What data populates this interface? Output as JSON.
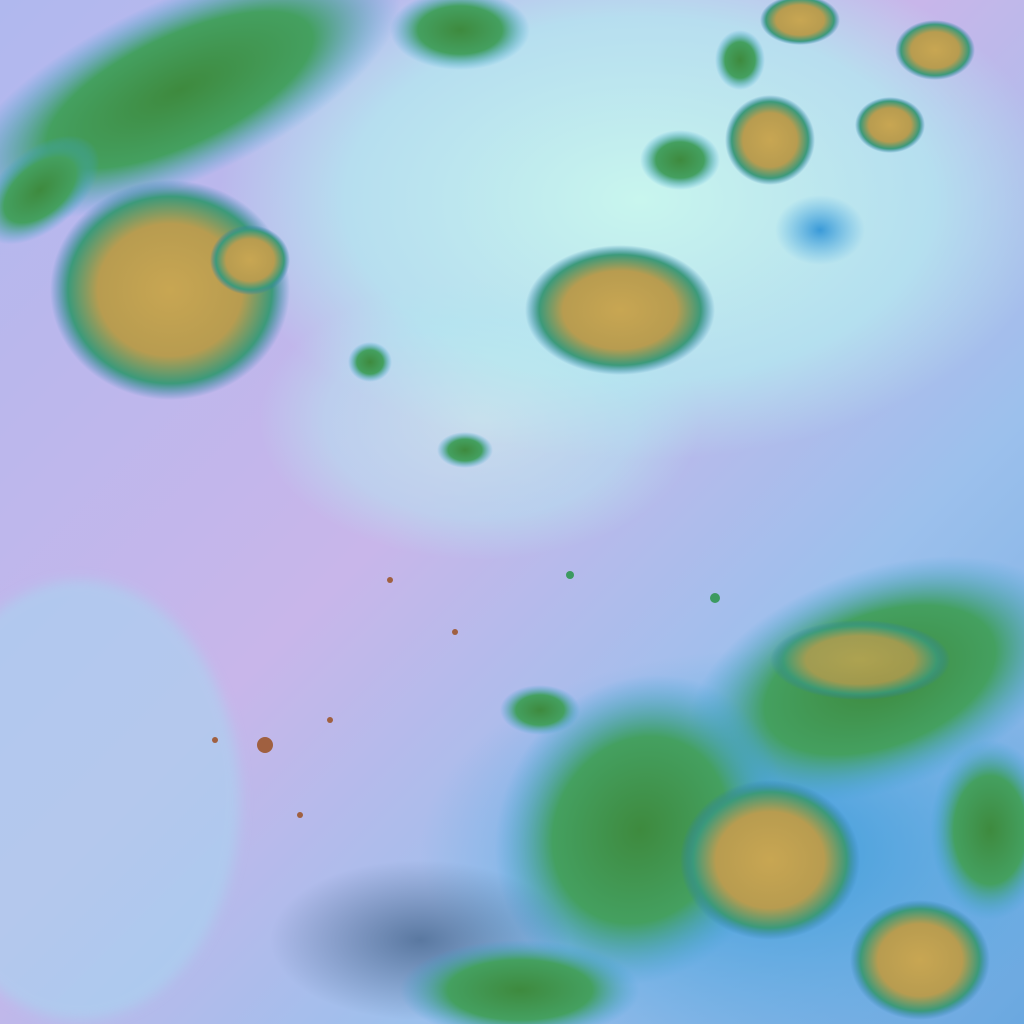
{
  "image": {
    "kind": "false-color satellite cloud imagery",
    "colors": {
      "clear_sky_pink": "#c6b4ea",
      "clear_sky_blue": "#7fb4e8",
      "low_cloud_cyan": "#b8f0ea",
      "mid_cloud_blue": "#3aa0d8",
      "high_cloud_green": "#3c8a48",
      "deep_convection_olive": "#c0a050",
      "shadow_navy": "#1c3c60"
    }
  }
}
